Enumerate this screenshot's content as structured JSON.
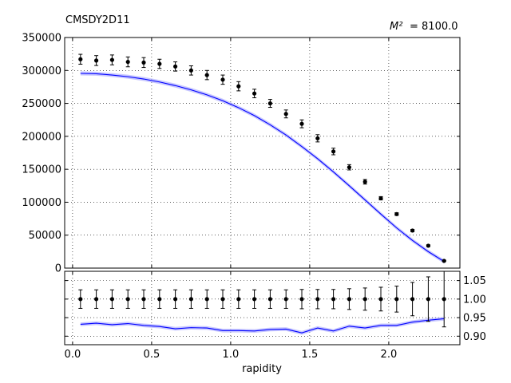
{
  "chart_data": [
    {
      "type": "line",
      "title": "CMSDY2D11",
      "annotation": "= 8100.0",
      "annotation_symbol": "M²",
      "xlabel": "rapidity",
      "ylabel": "",
      "xlim": [
        -0.05,
        2.45
      ],
      "ylim": [
        0,
        350000
      ],
      "grid": true,
      "yticks": [
        "0",
        "50000",
        "100000",
        "150000",
        "200000",
        "250000",
        "300000",
        "350000"
      ],
      "xticks": [
        "0.0",
        "0.5",
        "1.0",
        "1.5",
        "2.0"
      ],
      "x": [
        0.05,
        0.15,
        0.25,
        0.35,
        0.45,
        0.55,
        0.65,
        0.75,
        0.85,
        0.95,
        1.05,
        1.15,
        1.25,
        1.35,
        1.45,
        1.55,
        1.65,
        1.75,
        1.85,
        1.95,
        2.05,
        2.15,
        2.25,
        2.35
      ],
      "series": [
        {
          "kind": "data-points-with-errorbars",
          "color": "#000000",
          "values": [
            317000,
            315000,
            316000,
            313000,
            312000,
            310000,
            306000,
            300000,
            293000,
            286000,
            276000,
            265000,
            250000,
            234000,
            219000,
            197000,
            177000,
            153000,
            131000,
            106000,
            82000,
            57000,
            34000,
            11000
          ],
          "errors": [
            7500,
            7500,
            7500,
            7500,
            7500,
            7000,
            7000,
            7000,
            7000,
            7000,
            7000,
            6500,
            6000,
            6000,
            6000,
            5500,
            5000,
            4000,
            3500,
            2500,
            2000,
            1700,
            1300,
            800
          ]
        },
        {
          "kind": "theory-curve-with-band",
          "color": "#0000ff",
          "band_color": "#b0b0ff",
          "values": [
            295500,
            295000,
            293000,
            290500,
            287000,
            282500,
            277000,
            270500,
            263000,
            254000,
            243500,
            231500,
            217500,
            202000,
            184500,
            166000,
            146000,
            125000,
            103500,
            82000,
            61000,
            42000,
            25000,
            10000
          ],
          "band_halfwidth": 3000
        }
      ]
    },
    {
      "type": "line",
      "title": "",
      "xlabel": "rapidity",
      "ylabel": "",
      "xlim": [
        -0.05,
        2.45
      ],
      "ylim": [
        0.877,
        1.075
      ],
      "grid": true,
      "yticks": [
        "0.90",
        "0.95",
        "1.00",
        "1.05"
      ],
      "xticks": [
        "0.0",
        "0.5",
        "1.0",
        "1.5",
        "2.0"
      ],
      "x": [
        0.05,
        0.15,
        0.25,
        0.35,
        0.45,
        0.55,
        0.65,
        0.75,
        0.85,
        0.95,
        1.05,
        1.15,
        1.25,
        1.35,
        1.45,
        1.55,
        1.65,
        1.75,
        1.85,
        1.95,
        2.05,
        2.15,
        2.25,
        2.35
      ],
      "series": [
        {
          "kind": "ratio-data-points",
          "color": "#000000",
          "values": [
            1,
            1,
            1,
            1,
            1,
            1,
            1,
            1,
            1,
            1,
            1,
            1,
            1,
            1,
            1,
            1,
            1,
            1,
            1,
            1,
            1,
            1,
            1,
            1
          ],
          "errors": [
            0.025,
            0.025,
            0.025,
            0.025,
            0.025,
            0.025,
            0.025,
            0.025,
            0.025,
            0.025,
            0.025,
            0.025,
            0.025,
            0.025,
            0.026,
            0.026,
            0.026,
            0.028,
            0.03,
            0.032,
            0.035,
            0.045,
            0.06,
            0.075
          ]
        },
        {
          "kind": "ratio-theory-with-band",
          "color": "#0000ff",
          "band_color": "#b0b0ff",
          "values": [
            0.932,
            0.935,
            0.931,
            0.934,
            0.929,
            0.926,
            0.92,
            0.923,
            0.922,
            0.915,
            0.915,
            0.914,
            0.918,
            0.919,
            0.909,
            0.922,
            0.914,
            0.927,
            0.922,
            0.929,
            0.929,
            0.938,
            0.943,
            0.947
          ],
          "band_halfwidth": 0.005
        }
      ]
    }
  ]
}
